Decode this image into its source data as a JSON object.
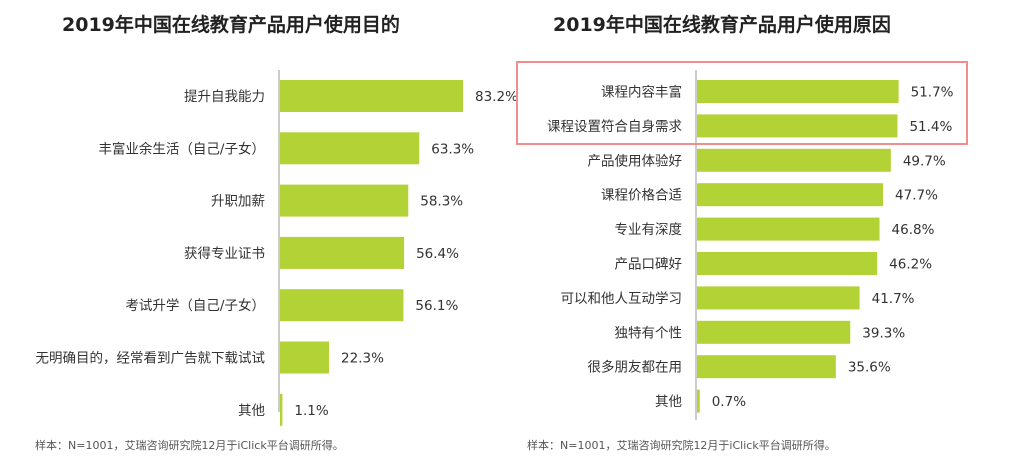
{
  "chart_data": [
    {
      "type": "bar",
      "orientation": "horizontal",
      "title": "2019年中国在线教育产品用户使用目的",
      "categories": [
        "提升自我能力",
        "丰富业余生活（自己/子女）",
        "升职加薪",
        "获得专业证书",
        "考试升学（自己/子女）",
        "无明确目的，经常看到广告就下载试试",
        "其他"
      ],
      "values": [
        83.2,
        63.3,
        58.3,
        56.4,
        56.1,
        22.3,
        1.1
      ],
      "labels": [
        "83.2%",
        "63.3%",
        "58.3%",
        "56.4%",
        "56.1%",
        "22.3%",
        "1.1%"
      ],
      "xlim": [
        0,
        100
      ],
      "color": "#b2d235",
      "note": "样本：N=1001，艾瑞咨询研究院12月于iClick平台调研所得。"
    },
    {
      "type": "bar",
      "orientation": "horizontal",
      "title": "2019年中国在线教育产品用户使用原因",
      "categories": [
        "课程内容丰富",
        "课程设置符合自身需求",
        "产品使用体验好",
        "课程价格合适",
        "专业有深度",
        "产品口碑好",
        "可以和他人互动学习",
        "独特有个性",
        "很多朋友都在用",
        "其他"
      ],
      "values": [
        51.7,
        51.4,
        49.7,
        47.7,
        46.8,
        46.2,
        41.7,
        39.3,
        35.6,
        0.7
      ],
      "labels": [
        "51.7%",
        "51.4%",
        "49.7%",
        "47.7%",
        "46.8%",
        "46.2%",
        "41.7%",
        "39.3%",
        "35.6%",
        "0.7%"
      ],
      "xlim": [
        0,
        100
      ],
      "color": "#b2d235",
      "highlight_color": "#f08d8d",
      "note": "样本：N=1001，艾瑞咨询研究院12月于iClick平台调研所得。"
    }
  ]
}
